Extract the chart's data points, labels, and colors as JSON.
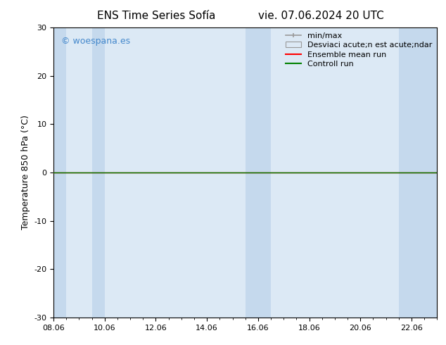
{
  "title_left": "ENS Time Series Sofía",
  "title_right": "vie. 07.06.2024 20 UTC",
  "ylabel": "Temperature 850 hPa (°C)",
  "xlabel": "",
  "xlim_dates": [
    "08.06",
    "10.06",
    "12.06",
    "14.06",
    "16.06",
    "18.06",
    "20.06",
    "22.06"
  ],
  "ylim": [
    -30,
    30
  ],
  "yticks": [
    -30,
    -20,
    -10,
    0,
    10,
    20,
    30
  ],
  "background_color": "#ffffff",
  "plot_bg_color": "#dce9f5",
  "shaded_color": "#c5d9ed",
  "ensemble_mean_color": "#ff0000",
  "control_run_color": "#008000",
  "watermark_text": "© woespana.es",
  "watermark_color": "#4488cc",
  "legend_minmax_label": "min/max",
  "legend_std_label": "Desviaci acute;n est acute;ndar",
  "legend_mean_label": "Ensemble mean run",
  "legend_ctrl_label": "Controll run",
  "font_size_title": 11,
  "font_size_axis": 9,
  "font_size_tick": 8,
  "font_size_legend": 8,
  "font_size_watermark": 9,
  "shaded_bands": [
    [
      0.0,
      0.5
    ],
    [
      1.5,
      2.0
    ],
    [
      7.5,
      8.5
    ],
    [
      13.5,
      15.0
    ]
  ],
  "x_min": 0,
  "x_max": 15.0,
  "xtick_positions": [
    0,
    2,
    4,
    6,
    8,
    10,
    12,
    14
  ]
}
